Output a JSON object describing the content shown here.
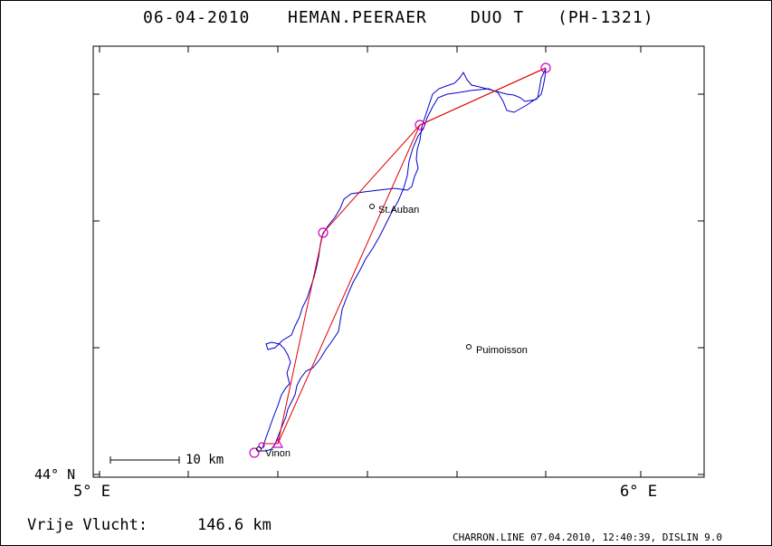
{
  "header": {
    "date": "06-04-2010",
    "pilot": "HEMAN.PEERAER",
    "glider": "DUO T",
    "registration": "(PH-1321)"
  },
  "axes": {
    "lat_label": "44° N",
    "lon_labels": [
      "5° E",
      "6° E"
    ]
  },
  "scale_bar": {
    "label": "10 km"
  },
  "places": [
    {
      "name": "St.Auban"
    },
    {
      "name": "Puimoisson"
    },
    {
      "name": "Vinon"
    }
  ],
  "footer": {
    "flight_label": "Vrije Vlucht:",
    "distance": "146.6 km",
    "credits": "CHARRON.LINE 07.04.2010, 12:40:39, DISLIN 9.0"
  },
  "colors": {
    "track": "#0000cc",
    "task_line": "#e00000",
    "turnpoint": "#cc00cc",
    "frame": "#000000"
  }
}
